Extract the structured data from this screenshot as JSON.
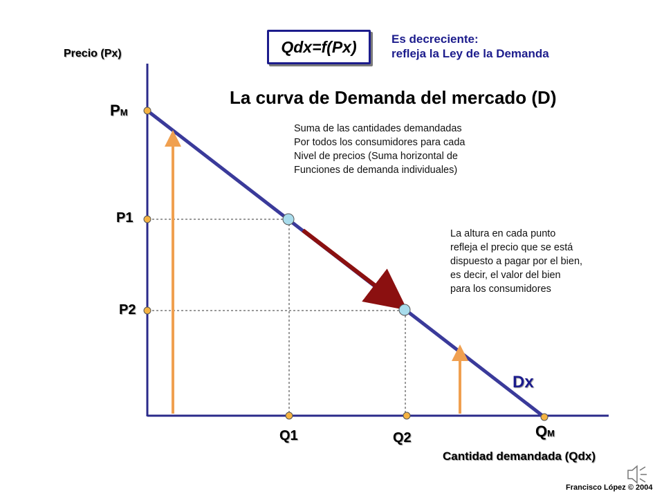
{
  "title": "La curva de Demanda del mercado (D)",
  "formula": "Qdx=f(Px)",
  "note_top": {
    "line1": "Es decreciente:",
    "line2": "refleja la Ley de la Demanda"
  },
  "note_sum": [
    "Suma de las cantidades demandadas",
    "Por todos los consumidores para cada",
    "Nivel de precios (Suma horizontal de",
    "Funciones de demanda individuales)"
  ],
  "note_height": [
    "La altura en cada punto",
    "refleja el precio que se está",
    "dispuesto a pagar por el bien,",
    "es decir, el valor del bien",
    "para los consumidores"
  ],
  "axes": {
    "y_label": "Precio (Px)",
    "x_label": "Cantidad demandada (Qdx)"
  },
  "price_ticks": {
    "pm_main": "P",
    "pm_sub": "M",
    "p1": "P1",
    "p2": "P2"
  },
  "quantity_ticks": {
    "q1": "Q1",
    "q2": "Q2",
    "qm_main": "Q",
    "qm_sub": "M"
  },
  "curve_label": "Dx",
  "credit": "Francisco López © 2004",
  "colors": {
    "curve": "#3a3a9a",
    "axis": "#2a2a8a",
    "movement_arrow": "#8b1010",
    "height_arrows": "#f0a050",
    "axis_dots": "#f5b342",
    "curve_points": "#a8dcec"
  },
  "icons": {
    "sound": "speaker-icon"
  }
}
